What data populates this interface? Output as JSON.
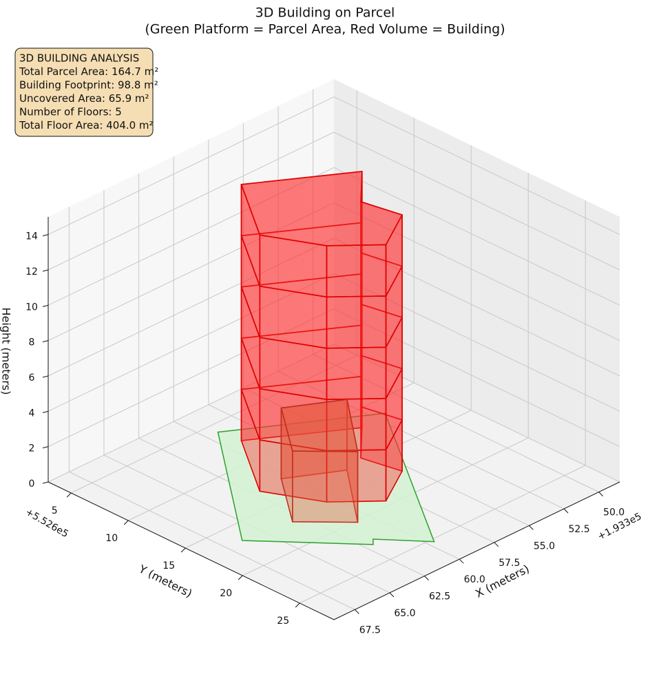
{
  "chart_data": {
    "type": "3d-building",
    "title": "3D Building on Parcel",
    "subtitle": "(Green Platform = Parcel Area, Red Volume = Building)",
    "info_box": {
      "lines": [
        "3D BUILDING ANALYSIS",
        "Total Parcel Area: 164.7 m²",
        "Building Footprint: 98.8 m²",
        "Uncovered Area: 65.9 m²",
        "Number of Floors: 5",
        "Total Floor Area: 404.0 m²"
      ]
    },
    "xlabel": "X (meters)",
    "ylabel": "Y (meters)",
    "zlabel": "Height (meters)",
    "x_offset_label": "+1.933e5",
    "y_offset_label": "+5.526e5",
    "xlim": [
      48.5,
      69
    ],
    "ylim": [
      3,
      28
    ],
    "zlim": [
      0,
      15
    ],
    "xticks": [
      {
        "value": 50,
        "label": "50.0"
      },
      {
        "value": 52.5,
        "label": "52.5"
      },
      {
        "value": 55,
        "label": "55.0"
      },
      {
        "value": 57.5,
        "label": "57.5"
      },
      {
        "value": 60,
        "label": "60.0"
      },
      {
        "value": 62.5,
        "label": "62.5"
      },
      {
        "value": 65,
        "label": "65.0"
      },
      {
        "value": 67.5,
        "label": "67.5"
      }
    ],
    "yticks": [
      5,
      10,
      15,
      20,
      25
    ],
    "zticks": [
      0,
      2,
      4,
      6,
      8,
      10,
      12,
      14
    ],
    "grid": true,
    "parcel": {
      "color": "#2ca02c",
      "fill": "#d4f2d4",
      "x": [
        59.2,
        51.8,
        59.6,
        61.6,
        62.0,
        66.4
      ],
      "y": [
        5.9,
        11.5,
        25.3,
        22.4,
        22.9,
        16.8
      ]
    },
    "volumes": [
      {
        "color": "#e00000",
        "fill": "#ff3030",
        "x": [
          59.0,
          53.7,
          56.0,
          55.5,
          58.3,
          60.5,
          62.1
        ],
        "y": [
          7.7,
          11.8,
          14.5,
          17.5,
          19.5,
          17.0,
          13.1
        ],
        "levels": [
          0,
          2.9,
          5.8,
          8.7,
          11.6,
          14.5
        ]
      },
      {
        "color": "#c03020",
        "fill": "#e06040",
        "x": [
          60.4,
          57.4,
          60.9,
          63.2
        ],
        "y": [
          12.9,
          15.0,
          20.2,
          17.3
        ],
        "levels": [
          0,
          4.0
        ]
      }
    ]
  }
}
